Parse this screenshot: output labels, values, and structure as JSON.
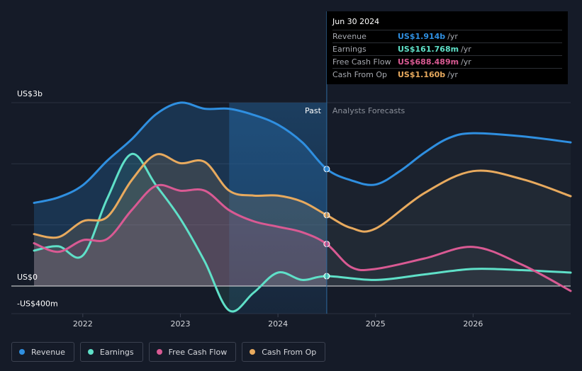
{
  "chart_data": {
    "type": "line",
    "y_unit": "US$ millions",
    "ylim": [
      -400,
      3000
    ],
    "xlim": [
      2021.5,
      2027.0
    ],
    "y_tick_labels": [
      {
        "value": 3000,
        "label": "US$3b"
      },
      {
        "value": 0,
        "label": "US$0"
      },
      {
        "value": -400,
        "label": "-US$400m"
      }
    ],
    "x_ticks": [
      {
        "value": 2022,
        "label": "2022"
      },
      {
        "value": 2023,
        "label": "2023"
      },
      {
        "value": 2024,
        "label": "2024"
      },
      {
        "value": 2025,
        "label": "2025"
      },
      {
        "value": 2026,
        "label": "2026"
      }
    ],
    "divider_x": 2024.5,
    "highlight_start_x": 2023.5,
    "past_label": "Past",
    "forecast_label": "Analysts Forecasts",
    "series": [
      {
        "key": "revenue",
        "name": "Revenue",
        "color": "#2f8fe0",
        "x": [
          2021.5,
          2021.75,
          2022.0,
          2022.25,
          2022.5,
          2022.75,
          2023.0,
          2023.25,
          2023.5,
          2023.75,
          2024.0,
          2024.25,
          2024.5,
          2024.75,
          2025.0,
          2025.25,
          2025.5,
          2025.75,
          2026.0,
          2026.5,
          2027.0
        ],
        "values": [
          1360,
          1450,
          1650,
          2050,
          2400,
          2810,
          3000,
          2900,
          2900,
          2800,
          2640,
          2350,
          1914,
          1730,
          1660,
          1880,
          2180,
          2420,
          2500,
          2450,
          2350
        ]
      },
      {
        "key": "earnings",
        "name": "Earnings",
        "color": "#5fe0c8",
        "x": [
          2021.5,
          2021.75,
          2022.0,
          2022.25,
          2022.5,
          2022.75,
          2023.0,
          2023.25,
          2023.5,
          2023.75,
          2024.0,
          2024.25,
          2024.5,
          2025.0,
          2025.5,
          2026.0,
          2026.5,
          2027.0
        ],
        "values": [
          580,
          650,
          500,
          1430,
          2160,
          1650,
          1100,
          400,
          -400,
          -110,
          220,
          100,
          162,
          100,
          190,
          280,
          260,
          220
        ]
      },
      {
        "key": "fcf",
        "name": "Free Cash Flow",
        "color": "#d95a93",
        "x": [
          2021.5,
          2021.75,
          2022.0,
          2022.25,
          2022.5,
          2022.75,
          2023.0,
          2023.25,
          2023.5,
          2023.75,
          2024.0,
          2024.25,
          2024.5,
          2024.75,
          2025.0,
          2025.5,
          2026.0,
          2026.5,
          2027.0
        ],
        "values": [
          700,
          560,
          750,
          770,
          1240,
          1640,
          1560,
          1560,
          1240,
          1060,
          970,
          880,
          688,
          310,
          280,
          450,
          640,
          350,
          -80
        ]
      },
      {
        "key": "cfo",
        "name": "Cash From Op",
        "color": "#e8aa5e",
        "x": [
          2021.5,
          2021.75,
          2022.0,
          2022.25,
          2022.5,
          2022.75,
          2023.0,
          2023.25,
          2023.5,
          2023.75,
          2024.0,
          2024.25,
          2024.5,
          2024.75,
          2025.0,
          2025.5,
          2026.0,
          2026.5,
          2027.0
        ],
        "values": [
          850,
          800,
          1060,
          1130,
          1730,
          2150,
          2010,
          2030,
          1560,
          1480,
          1480,
          1380,
          1160,
          950,
          940,
          1520,
          1880,
          1750,
          1470
        ]
      }
    ],
    "highlight_points": [
      {
        "series": "revenue",
        "x": 2024.5,
        "value": 1914
      },
      {
        "series": "earnings",
        "x": 2024.5,
        "value": 162
      },
      {
        "series": "fcf",
        "x": 2024.5,
        "value": 688
      },
      {
        "series": "cfo",
        "x": 2024.5,
        "value": 1160
      }
    ]
  },
  "tooltip": {
    "date": "Jun 30 2024",
    "rows": [
      {
        "label": "Revenue",
        "value": "US$1.914b",
        "unit": "/yr",
        "color": "#2f8fe0"
      },
      {
        "label": "Earnings",
        "value": "US$161.768m",
        "unit": "/yr",
        "color": "#5fe0c8"
      },
      {
        "label": "Free Cash Flow",
        "value": "US$688.489m",
        "unit": "/yr",
        "color": "#d95a93"
      },
      {
        "label": "Cash From Op",
        "value": "US$1.160b",
        "unit": "/yr",
        "color": "#e8aa5e"
      }
    ]
  },
  "legend": [
    {
      "label": "Revenue",
      "color": "#2f8fe0"
    },
    {
      "label": "Earnings",
      "color": "#5fe0c8"
    },
    {
      "label": "Free Cash Flow",
      "color": "#d95a93"
    },
    {
      "label": "Cash From Op",
      "color": "#e8aa5e"
    }
  ]
}
